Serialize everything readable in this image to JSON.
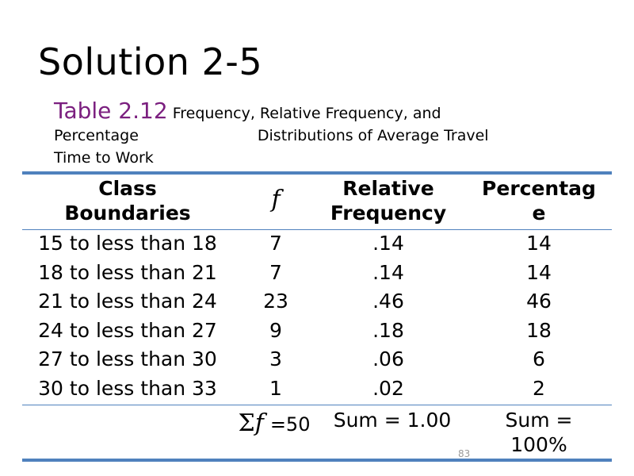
{
  "slide": {
    "title": "Solution 2-5",
    "caption_label": "Table 2.12",
    "caption_line1": "Frequency, Relative Frequency, and",
    "caption_line2a": "Percentage",
    "caption_line2b": "Distributions of Average Travel",
    "caption_line3": "Time to Work",
    "page_number": "83"
  },
  "table": {
    "headers": {
      "class_line1": "Class",
      "class_line2": "Boundaries",
      "f": "f",
      "rel_line1": "Relative",
      "rel_line2": "Frequency",
      "pct_line1": "Percentag",
      "pct_line2": "e"
    },
    "rows": [
      {
        "class": "15 to less than 18",
        "f": "7",
        "rel": ".14",
        "pct": "14"
      },
      {
        "class": "18 to less than 21",
        "f": "7",
        "rel": ".14",
        "pct": "14"
      },
      {
        "class": "21 to less than 24",
        "f": "23",
        "rel": ".46",
        "pct": "46"
      },
      {
        "class": "24 to less than 27",
        "f": "9",
        "rel": ".18",
        "pct": "18"
      },
      {
        "class": "27 to less than 30",
        "f": "3",
        "rel": ".06",
        "pct": "6"
      },
      {
        "class": "30 to less than 33",
        "f": "1",
        "rel": ".02",
        "pct": "2"
      }
    ],
    "totals": {
      "sigma": "Σ",
      "f_symbol": "f",
      "f_value": "=50",
      "rel": "Sum = 1.00",
      "pct_line1": "Sum =",
      "pct_line2": "100%"
    }
  },
  "colors": {
    "caption_label": "#7b1f7f",
    "rule": "#4f81bd"
  }
}
